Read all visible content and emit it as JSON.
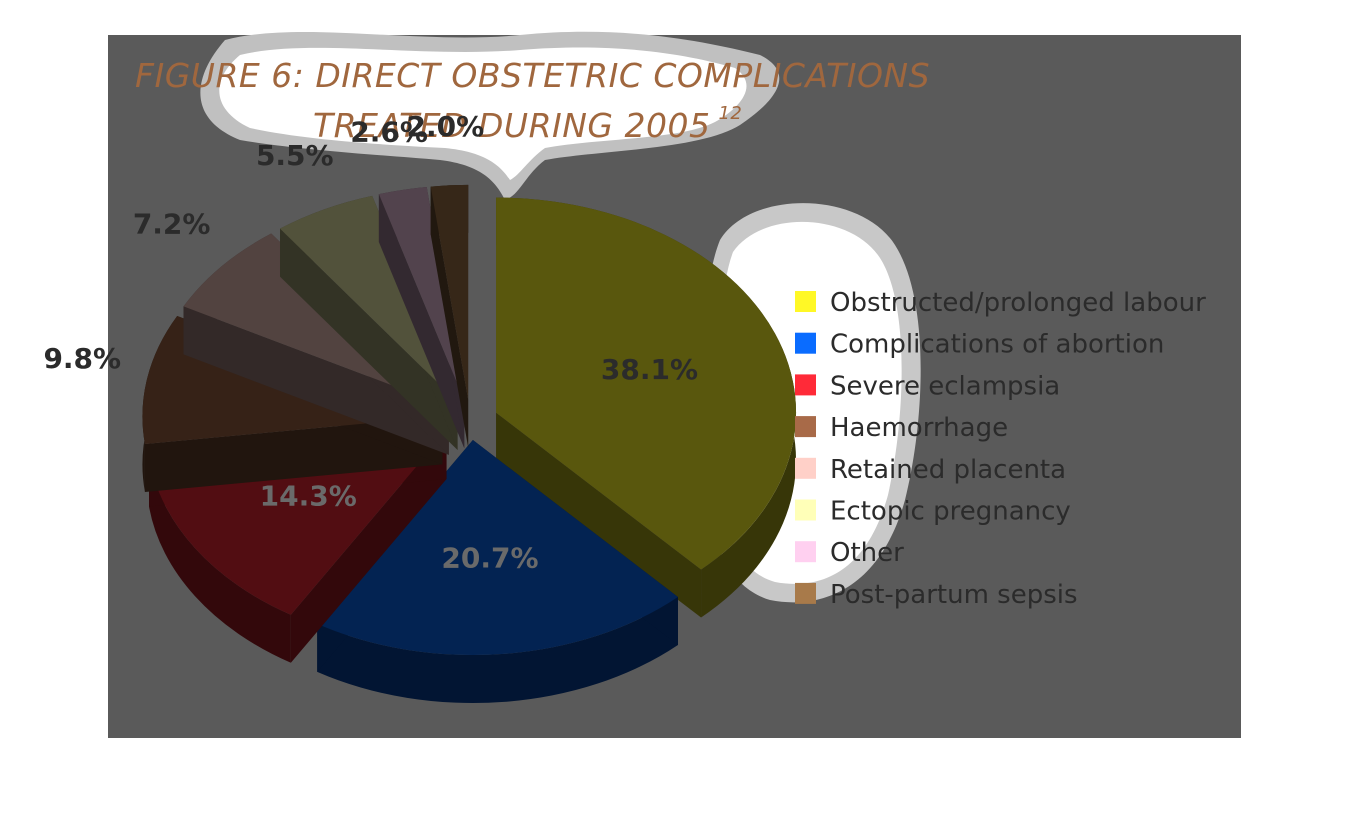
{
  "chart_data": {
    "type": "pie",
    "title_line1": "FIGURE 6: DIRECT OBSTETRIC COMPLICATIONS",
    "title_line2": "TREATED DURING 2005",
    "title_sup": "12",
    "slices": [
      {
        "name": "Obstructed/prolonged labour",
        "value": 38.1,
        "label": "38.1%",
        "color": "#fff826"
      },
      {
        "name": "Complications of abortion",
        "value": 20.7,
        "label": "20.7%",
        "color": "#0a6cff"
      },
      {
        "name": "Severe eclampsia",
        "value": 14.3,
        "label": "14.3%",
        "color": "#ff2a38"
      },
      {
        "name": "Haemorrhage",
        "value": 9.8,
        "label": "9.8%",
        "color": "#a86a48"
      },
      {
        "name": "Retained placenta",
        "value": 7.2,
        "label": "7.2%",
        "color": "#ffd0c8"
      },
      {
        "name": "Ectopic pregnancy",
        "value": 5.5,
        "label": "5.5%",
        "color": "#ffffb8"
      },
      {
        "name": "Other",
        "value": 2.6,
        "label": "2.6%",
        "color": "#ffd0f0"
      },
      {
        "name": "Post-partum sepsis",
        "value": 2.0,
        "label": "2.0%",
        "color": "#a87a4a"
      }
    ],
    "legend_position": "right"
  }
}
